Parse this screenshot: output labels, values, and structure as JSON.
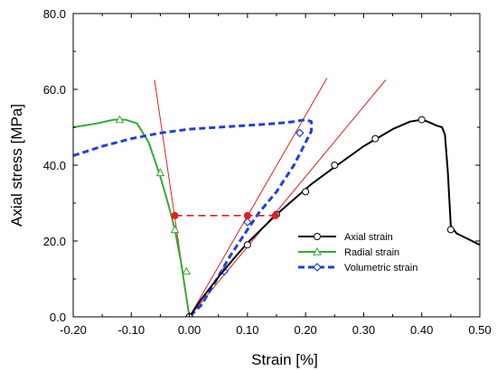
{
  "chart_data": {
    "type": "line",
    "title": "",
    "xlabel": "Strain [%]",
    "ylabel": "Axial stress [MPa]",
    "xlim": [
      -0.2,
      0.5
    ],
    "ylim": [
      0,
      80
    ],
    "xticks": [
      -0.2,
      -0.1,
      0.0,
      0.1,
      0.2,
      0.3,
      0.4,
      0.5
    ],
    "xtick_labels": [
      "-0.20",
      "-0.10",
      "0.00",
      "0.10",
      "0.20",
      "0.30",
      "0.40",
      "0.50"
    ],
    "yticks": [
      0,
      20,
      40,
      60,
      80
    ],
    "ytick_labels": [
      "0.0",
      "20.0",
      "40.0",
      "60.0",
      "80.0"
    ],
    "grid": false,
    "legend_position": "lower-right",
    "series": [
      {
        "name": "Axial strain",
        "color": "#000000",
        "line_style": "solid",
        "marker": "circle",
        "x": [
          0.0,
          0.02,
          0.05,
          0.08,
          0.1,
          0.13,
          0.15,
          0.18,
          0.21,
          0.25,
          0.3,
          0.35,
          0.38,
          0.4,
          0.41,
          0.425,
          0.435,
          0.44,
          0.445,
          0.45,
          0.46,
          0.48,
          0.5
        ],
        "y": [
          0.0,
          4.5,
          10.5,
          16.0,
          19.5,
          24.0,
          27.0,
          31.0,
          35.0,
          39.5,
          45.0,
          49.5,
          51.5,
          52.0,
          51.5,
          50.5,
          50.0,
          48.0,
          38.0,
          24.0,
          22.0,
          20.5,
          19.0
        ],
        "marker_x": [
          0.0,
          0.1,
          0.15,
          0.2,
          0.25,
          0.32,
          0.4,
          0.45
        ],
        "marker_y": [
          0.0,
          19.0,
          27.0,
          33.0,
          40.0,
          47.0,
          52.0,
          23.0
        ]
      },
      {
        "name": "Radial strain",
        "color": "#33aa33",
        "line_style": "solid",
        "marker": "triangle",
        "x": [
          -0.2,
          -0.16,
          -0.13,
          -0.11,
          -0.09,
          -0.07,
          -0.05,
          -0.035,
          -0.025,
          -0.015,
          -0.008,
          -0.003,
          0.0
        ],
        "y": [
          50.0,
          51.0,
          52.0,
          52.0,
          51.0,
          46.0,
          37.0,
          29.0,
          23.0,
          15.0,
          8.0,
          3.0,
          0.0
        ],
        "marker_x": [
          -0.12,
          -0.05,
          -0.025,
          -0.005
        ],
        "marker_y": [
          52.0,
          38.0,
          23.0,
          12.0
        ]
      },
      {
        "name": "Volumetric strain",
        "color": "#1f3fdc",
        "line_style": "dashed",
        "marker": "diamond",
        "x": [
          -0.2,
          -0.15,
          -0.1,
          -0.05,
          0.0,
          0.05,
          0.1,
          0.15,
          0.18,
          0.2,
          0.21,
          0.21,
          0.2,
          0.18,
          0.15,
          0.12,
          0.1,
          0.07,
          0.04,
          0.02,
          0.0
        ],
        "y": [
          42.5,
          45.0,
          47.0,
          48.5,
          49.5,
          50.0,
          50.5,
          51.0,
          51.5,
          52.0,
          51.5,
          49.0,
          46.0,
          40.0,
          33.0,
          27.5,
          23.0,
          16.0,
          8.0,
          3.0,
          0.0
        ],
        "marker_x": [
          0.0,
          0.06,
          0.1,
          0.19
        ],
        "marker_y": [
          0.0,
          12.0,
          25.0,
          48.5
        ]
      },
      {
        "name": "",
        "color": "#e02020",
        "line_style": "dashed",
        "marker": "dot",
        "x": [
          -0.025,
          0.1,
          0.148
        ],
        "y": [
          26.7,
          26.7,
          26.7
        ],
        "marker_x": [
          -0.025,
          0.1,
          0.148
        ],
        "marker_y": [
          26.7,
          26.7,
          26.7
        ]
      },
      {
        "name": "",
        "color": "#e02020",
        "line_style": "solid",
        "marker": "none",
        "x": [
          -0.06,
          0.0
        ],
        "y": [
          62.5,
          0.0
        ],
        "marker_x": [],
        "marker_y": []
      },
      {
        "name": "",
        "color": "#e02020",
        "line_style": "solid",
        "marker": "none",
        "x": [
          0.0,
          0.237
        ],
        "y": [
          0.0,
          63.0
        ],
        "marker_x": [],
        "marker_y": []
      },
      {
        "name": "",
        "color": "#e02020",
        "line_style": "solid",
        "marker": "none",
        "x": [
          0.0,
          0.338
        ],
        "y": [
          0.0,
          62.5
        ],
        "marker_x": [],
        "marker_y": []
      }
    ]
  }
}
